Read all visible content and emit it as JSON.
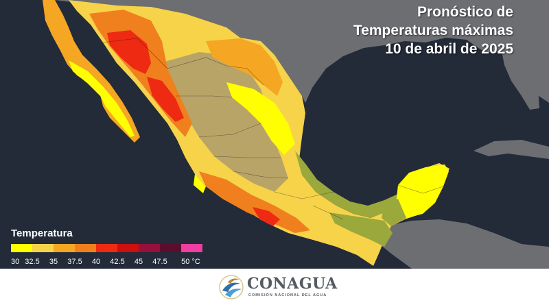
{
  "title": {
    "line1": "Pronóstico de",
    "line2": "Temperaturas máximas",
    "line3": "10 de abril de 2025"
  },
  "legend": {
    "title": "Temperatura",
    "labels": [
      "30",
      "32.5",
      "35",
      "37.5",
      "40",
      "42.5",
      "45",
      "47.5",
      "50 °C"
    ],
    "colors": [
      "#ffff00",
      "#f7d34a",
      "#f5a623",
      "#f07f1e",
      "#ee2a12",
      "#cc0f0f",
      "#96103c",
      "#5c0d2c",
      "#ee3ea0"
    ]
  },
  "map_colors": {
    "ocean": "#232a38",
    "neighbor_land": "#6e6f73",
    "highland": "#b9a468",
    "humid_lowland": "#9aa83c",
    "yellow": "#ffff00",
    "light_orange": "#f7d34a",
    "orange": "#f5a623",
    "deep_orange": "#f07f1e",
    "red": "#ee2a12"
  },
  "footer": {
    "logo_name": "CONAGUA",
    "logo_sub": "COMISIÓN NACIONAL DEL AGUA",
    "icon": "conagua-wave-icon"
  }
}
